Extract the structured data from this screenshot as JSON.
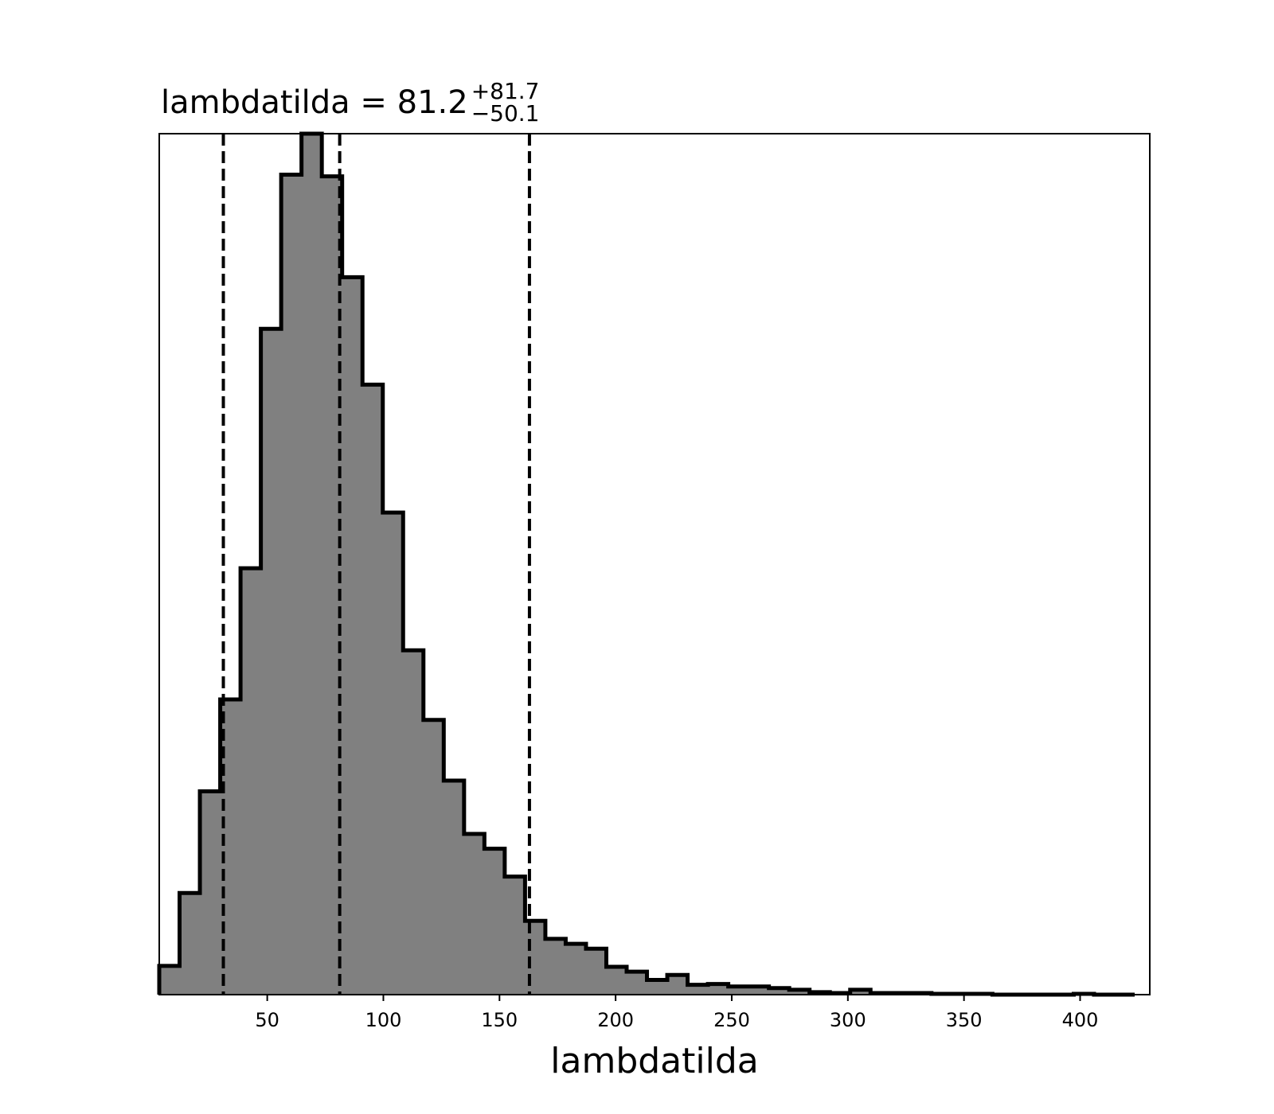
{
  "chart_data": {
    "type": "bar",
    "title": {
      "text": "lambdatilda = 81.2",
      "superscript": "+81.7",
      "subscript": "−50.1"
    },
    "xlabel": "lambdatilda",
    "ylabel": "",
    "xlim": [
      3.5,
      430
    ],
    "ylim": [
      0,
      1050
    ],
    "x_ticks": [
      50,
      100,
      150,
      200,
      250,
      300,
      350,
      400
    ],
    "x_tick_labels": [
      "50",
      "100",
      "150",
      "200",
      "250",
      "300",
      "350",
      "400"
    ],
    "y_ticks_visible": false,
    "grid": false,
    "legend": "none",
    "fill_color": "#808080",
    "edge_color": "#000000",
    "bin_edges": [
      3.5,
      12.25,
      21.0,
      29.75,
      38.5,
      47.25,
      56.0,
      64.75,
      73.5,
      82.25,
      91.0,
      99.75,
      108.5,
      117.25,
      126.0,
      134.75,
      143.5,
      152.25,
      161.0,
      169.75,
      178.5,
      187.25,
      196.0,
      204.75,
      213.5,
      222.25,
      231.0,
      239.75,
      248.5,
      257.25,
      266.0,
      274.75,
      283.5,
      292.25,
      301.0,
      309.75,
      318.5,
      327.25,
      336.0,
      344.75,
      353.5,
      362.25,
      371.0,
      379.75,
      388.5,
      397.25,
      406.0,
      414.75,
      423.5
    ],
    "values": [
      35,
      124,
      248,
      360,
      520,
      812,
      1000,
      1050,
      998,
      875,
      744,
      588,
      420,
      335,
      261,
      196,
      178,
      144,
      90,
      68,
      62,
      56,
      34,
      28,
      18,
      24,
      12,
      13,
      10,
      10,
      8,
      6,
      3,
      2,
      6,
      2,
      2,
      2,
      1,
      1,
      1,
      0,
      0,
      0,
      0,
      1,
      0,
      0
    ],
    "vlines": {
      "style": "dashed",
      "color": "#000000",
      "x": [
        31.1,
        81.2,
        162.9
      ]
    }
  }
}
